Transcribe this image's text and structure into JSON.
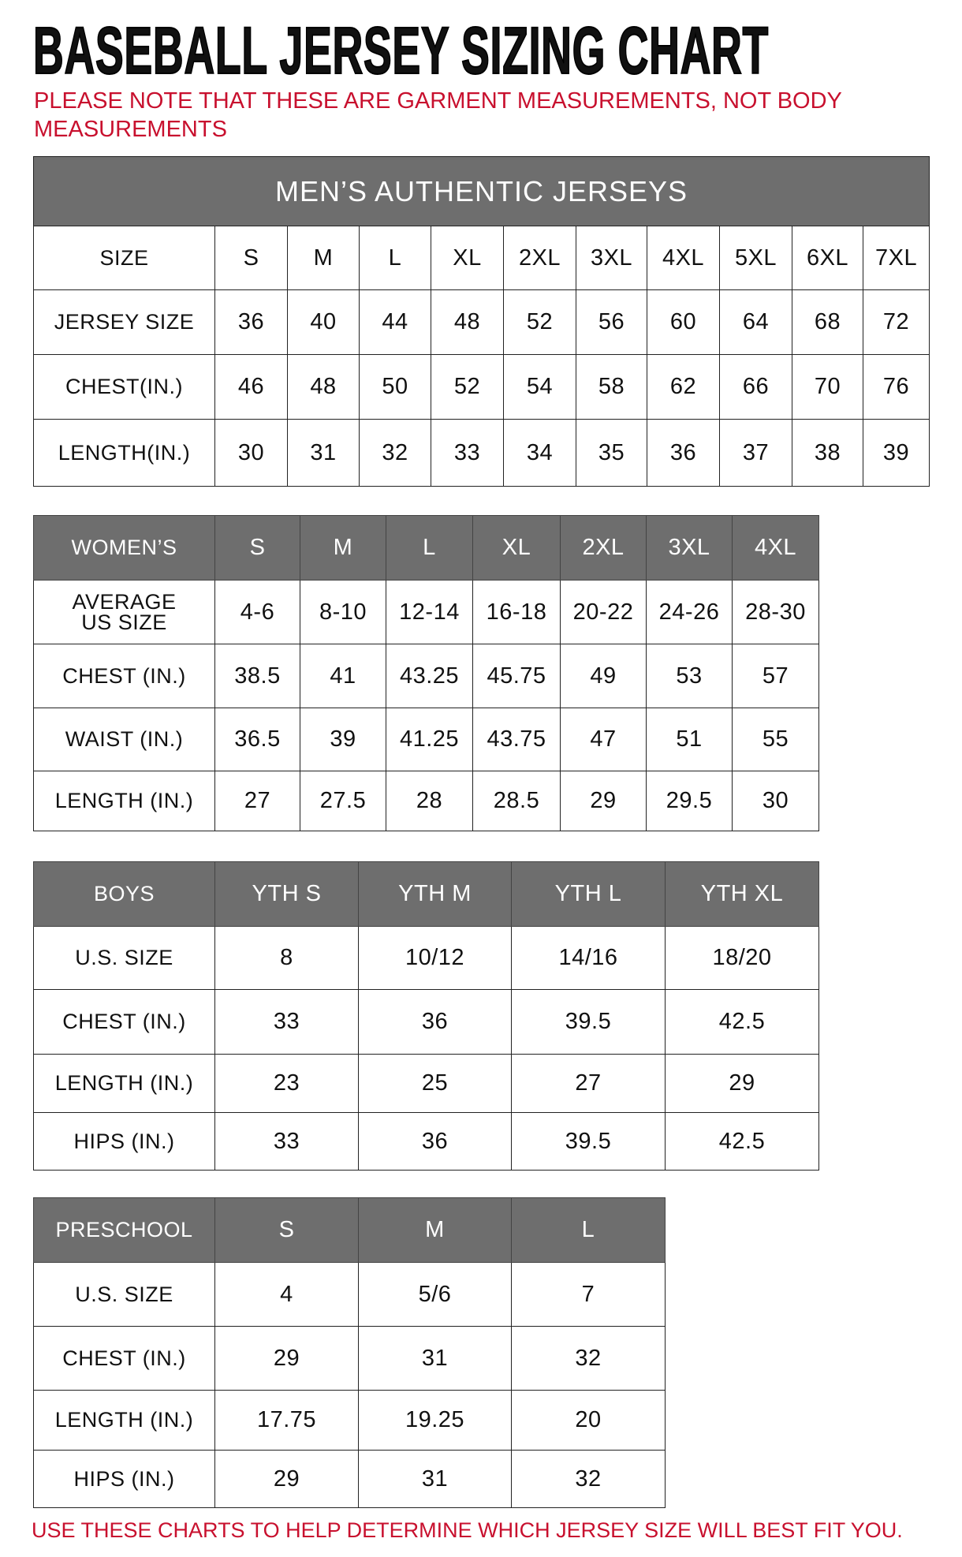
{
  "title": "BASEBALL JERSEY SIZING CHART",
  "note": "PLEASE NOTE THAT THESE ARE GARMENT MEASUREMENTS, NOT BODY MEASUREMENTS",
  "footer": "USE THESE CHARTS TO HELP DETERMINE WHICH JERSEY SIZE WILL BEST FIT YOU.",
  "colors": {
    "header_gray": "#6e6e6e",
    "note_red": "#c8102e"
  },
  "tables": [
    {
      "id": "mens",
      "banner": "MEN’S AUTHENTIC JERSEYS",
      "header": [
        "SIZE",
        "S",
        "M",
        "L",
        "XL",
        "2XL",
        "3XL",
        "4XL",
        "5XL",
        "6XL",
        "7XL"
      ],
      "header_gray": false,
      "rows": [
        [
          "JERSEY SIZE",
          "36",
          "40",
          "44",
          "48",
          "52",
          "56",
          "60",
          "64",
          "68",
          "72"
        ],
        [
          "CHEST(IN.)",
          "46",
          "48",
          "50",
          "52",
          "54",
          "58",
          "62",
          "66",
          "70",
          "76"
        ],
        [
          "LENGTH(IN.)",
          "30",
          "31",
          "32",
          "33",
          "34",
          "35",
          "36",
          "37",
          "38",
          "39"
        ]
      ]
    },
    {
      "id": "womens",
      "header": [
        "WOMEN’S",
        "S",
        "M",
        "L",
        "XL",
        "2XL",
        "3XL",
        "4XL"
      ],
      "header_gray": true,
      "rows": [
        [
          "AVERAGE US SIZE",
          "4-6",
          "8-10",
          "12-14",
          "16-18",
          "20-22",
          "24-26",
          "28-30"
        ],
        [
          "CHEST (IN.)",
          "38.5",
          "41",
          "43.25",
          "45.75",
          "49",
          "53",
          "57"
        ],
        [
          "WAIST (IN.)",
          "36.5",
          "39",
          "41.25",
          "43.75",
          "47",
          "51",
          "55"
        ],
        [
          "LENGTH (IN.)",
          "27",
          "27.5",
          "28",
          "28.5",
          "29",
          "29.5",
          "30"
        ]
      ]
    },
    {
      "id": "boys",
      "header": [
        "BOYS",
        "YTH S",
        "YTH M",
        "YTH L",
        "YTH XL"
      ],
      "header_gray": true,
      "rows": [
        [
          "U.S. SIZE",
          "8",
          "10/12",
          "14/16",
          "18/20"
        ],
        [
          "CHEST (IN.)",
          "33",
          "36",
          "39.5",
          "42.5"
        ],
        [
          "LENGTH (IN.)",
          "23",
          "25",
          "27",
          "29"
        ],
        [
          "HIPS (IN.)",
          "33",
          "36",
          "39.5",
          "42.5"
        ]
      ]
    },
    {
      "id": "preschool",
      "header": [
        "PRESCHOOL",
        "S",
        "M",
        "L"
      ],
      "header_gray": true,
      "rows": [
        [
          "U.S. SIZE",
          "4",
          "5/6",
          "7"
        ],
        [
          "CHEST (IN.)",
          "29",
          "31",
          "32"
        ],
        [
          "LENGTH (IN.)",
          "17.75",
          "19.25",
          "20"
        ],
        [
          "HIPS (IN.)",
          "29",
          "31",
          "32"
        ]
      ]
    }
  ]
}
